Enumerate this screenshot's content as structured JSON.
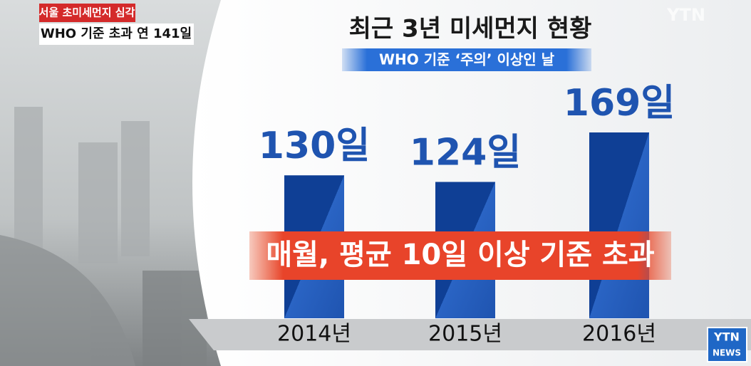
{
  "chart_data": {
    "type": "bar",
    "title": "최근 3년 미세먼지 현황",
    "subtitle": "WHO 기준 ‘주의’ 이상인 날",
    "categories": [
      "2014년",
      "2015년",
      "2016년"
    ],
    "values": [
      130,
      124,
      169
    ],
    "value_labels": [
      "130일",
      "124일",
      "169일"
    ],
    "color": "#1f54b0",
    "annotation": "매월, 평균 10일 이상 기준 초과"
  },
  "caption": {
    "headline": "서울 초미세먼지 심각",
    "subline": "WHO 기준 초과 연 141일"
  },
  "logos": {
    "watermark": "YTN",
    "corner_top": "YTN",
    "corner_bottom": "NEWS"
  }
}
